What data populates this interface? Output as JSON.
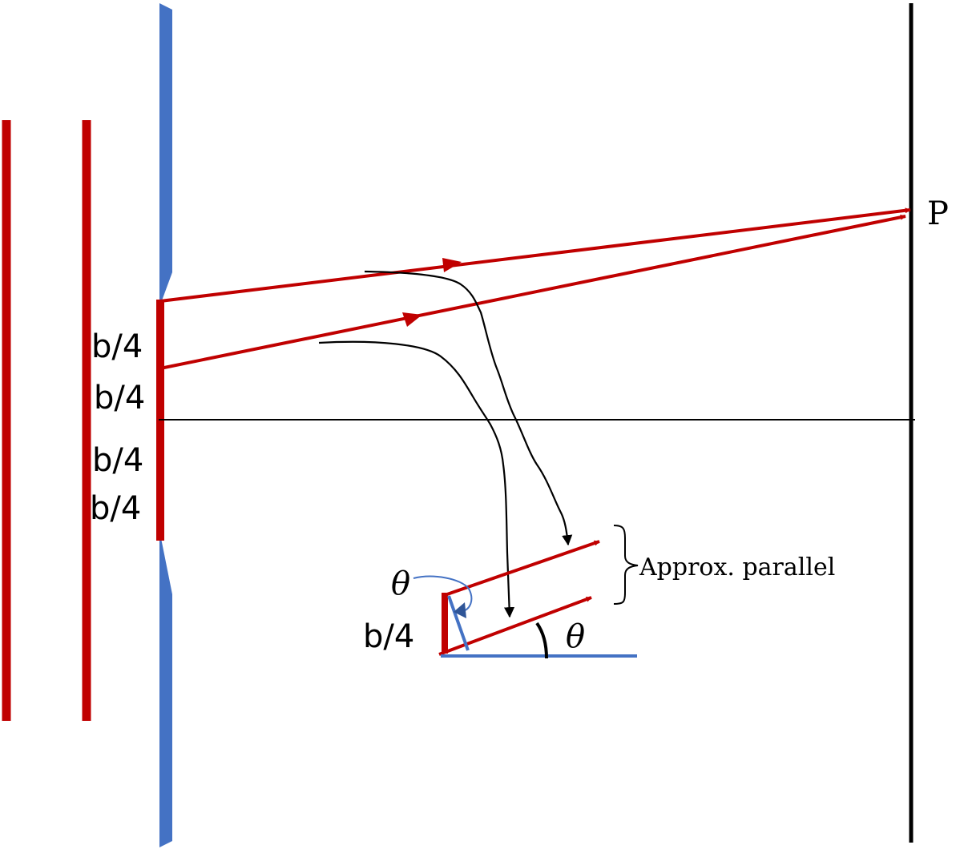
{
  "labels": {
    "point": "P",
    "seg_1": "b/4",
    "seg_2": "b/4",
    "seg_3": "b/4",
    "seg_4": "b/4",
    "seg_inset": "b/4",
    "theta_top": "θ",
    "theta_angle": "θ",
    "approx_parallel": "Approx. parallel"
  },
  "colors": {
    "ray": "#c00000",
    "barrier": "#4472c4",
    "line": "#000000"
  }
}
